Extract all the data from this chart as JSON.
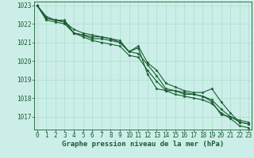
{
  "title": "Graphe pression niveau de la mer (hPa)",
  "background_color": "#cceee8",
  "plot_bg_color": "#cceee8",
  "grid_color": "#aaddcc",
  "line_color": "#1a5c32",
  "marker_color": "#1a5c32",
  "hours": [
    0,
    1,
    2,
    3,
    4,
    5,
    6,
    7,
    8,
    9,
    10,
    11,
    12,
    13,
    14,
    15,
    16,
    17,
    18,
    19,
    20,
    21,
    22,
    23
  ],
  "series": [
    [
      1023.0,
      1022.4,
      1022.2,
      1022.2,
      1021.5,
      1021.4,
      1021.3,
      1021.3,
      1021.2,
      1021.1,
      1020.5,
      1020.7,
      1019.3,
      1018.5,
      1018.4,
      1018.4,
      1018.3,
      1018.2,
      1018.1,
      1017.8,
      1017.1,
      1017.0,
      1016.7,
      1016.6
    ],
    [
      1023.0,
      1022.3,
      1022.2,
      1022.1,
      1021.5,
      1021.4,
      1021.2,
      1021.2,
      1021.1,
      1021.0,
      1020.5,
      1020.4,
      1019.8,
      1019.2,
      1018.5,
      1018.4,
      1018.2,
      1018.2,
      1018.1,
      1017.9,
      1017.4,
      1017.0,
      1016.8,
      1016.7
    ],
    [
      1023.0,
      1022.3,
      1022.2,
      1022.1,
      1021.7,
      1021.5,
      1021.4,
      1021.3,
      1021.2,
      1021.0,
      1020.5,
      1020.8,
      1019.9,
      1019.5,
      1018.8,
      1018.6,
      1018.4,
      1018.3,
      1018.3,
      1018.5,
      1017.8,
      1017.2,
      1016.7,
      1016.6
    ],
    [
      1023.0,
      1022.2,
      1022.1,
      1022.0,
      1021.5,
      1021.3,
      1021.1,
      1021.0,
      1020.9,
      1020.8,
      1020.3,
      1020.2,
      1019.5,
      1018.9,
      1018.4,
      1018.2,
      1018.1,
      1018.0,
      1017.9,
      1017.7,
      1017.2,
      1016.9,
      1016.5,
      1016.4
    ]
  ],
  "ylim": [
    1016.3,
    1023.2
  ],
  "yticks": [
    1017,
    1018,
    1019,
    1020,
    1021,
    1022,
    1023
  ],
  "xlim": [
    -0.3,
    23.3
  ],
  "xticks": [
    0,
    1,
    2,
    3,
    4,
    5,
    6,
    7,
    8,
    9,
    10,
    11,
    12,
    13,
    14,
    15,
    16,
    17,
    18,
    19,
    20,
    21,
    22,
    23
  ],
  "title_fontsize": 6.5,
  "tick_fontsize": 5.5,
  "line_width": 0.8,
  "marker_size": 2.5
}
